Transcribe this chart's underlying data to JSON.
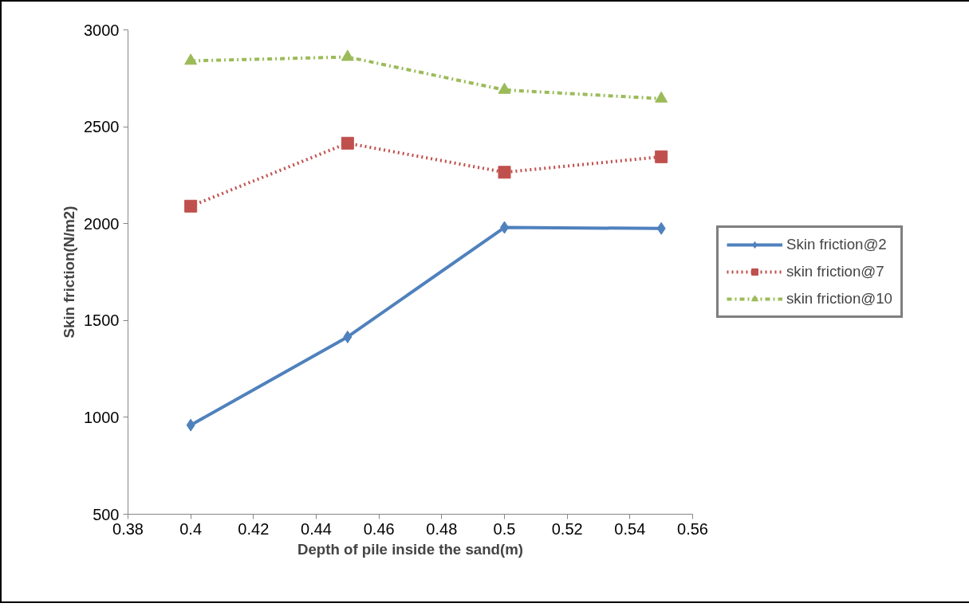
{
  "chart_data": {
    "type": "line",
    "xlabel": "Depth of pile inside the sand(m)",
    "ylabel": "Skin friction(N/m2)",
    "x": [
      0.4,
      0.45,
      0.5,
      0.55
    ],
    "series": [
      {
        "name": "Skin friction@2",
        "color": "#4f81bd",
        "marker": "diamond",
        "line_style": "solid",
        "values": [
          960,
          1415,
          1980,
          1975
        ]
      },
      {
        "name": "skin friction@7",
        "color": "#c0504d",
        "marker": "square",
        "line_style": "dotted",
        "values": [
          2090,
          2415,
          2265,
          2345
        ]
      },
      {
        "name": "skin friction@10",
        "color": "#9bbb59",
        "marker": "triangle",
        "line_style": "dashdot",
        "values": [
          2840,
          2860,
          2690,
          2645
        ]
      }
    ],
    "xlim": [
      0.38,
      0.56
    ],
    "xticks": [
      0.38,
      0.4,
      0.42,
      0.44,
      0.46,
      0.48,
      0.5,
      0.52,
      0.54,
      0.56
    ],
    "ylim": [
      500,
      3000
    ],
    "yticks": [
      500,
      1000,
      1500,
      2000,
      2500,
      3000
    ],
    "grid": false,
    "legend": "right"
  }
}
